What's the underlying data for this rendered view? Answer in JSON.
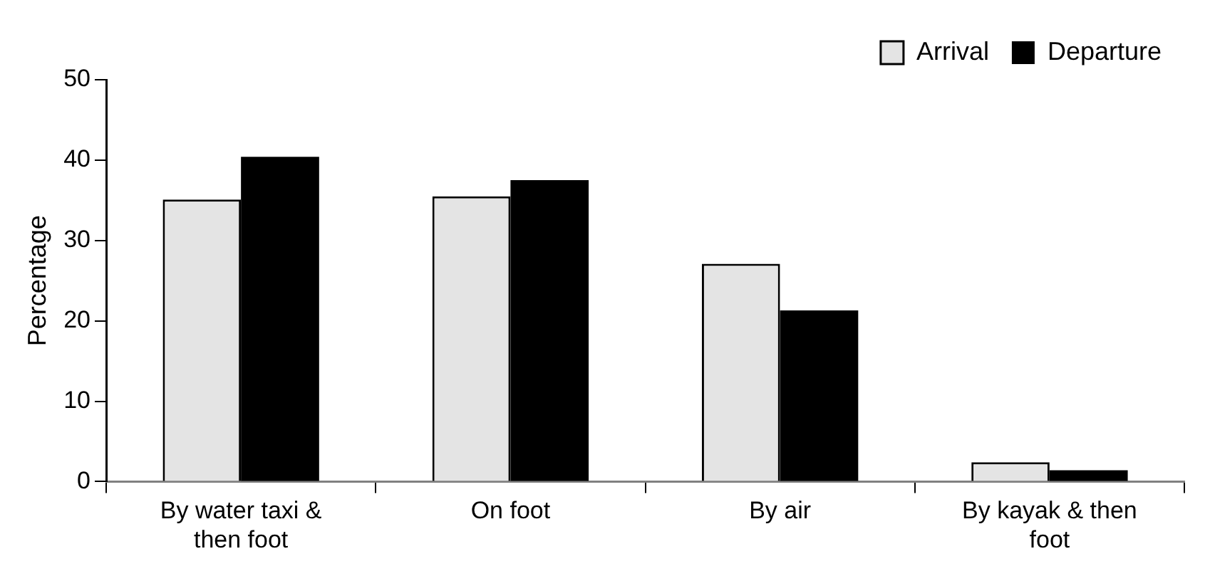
{
  "chart_data": {
    "type": "bar",
    "ylabel": "Percentage",
    "categories": [
      "By water taxi & then foot",
      "On foot",
      "By air",
      "By kayak & then foot"
    ],
    "series": [
      {
        "name": "Arrival",
        "color": "#e4e4e4",
        "values": [
          35.1,
          35.5,
          27.1,
          2.4
        ]
      },
      {
        "name": "Departure",
        "color": "#000000",
        "values": [
          40.4,
          37.5,
          21.3,
          1.4
        ]
      }
    ],
    "ylim": [
      0,
      50
    ],
    "yticks": [
      0,
      10,
      20,
      30,
      40,
      50
    ],
    "grid": false,
    "legend": "top right"
  }
}
